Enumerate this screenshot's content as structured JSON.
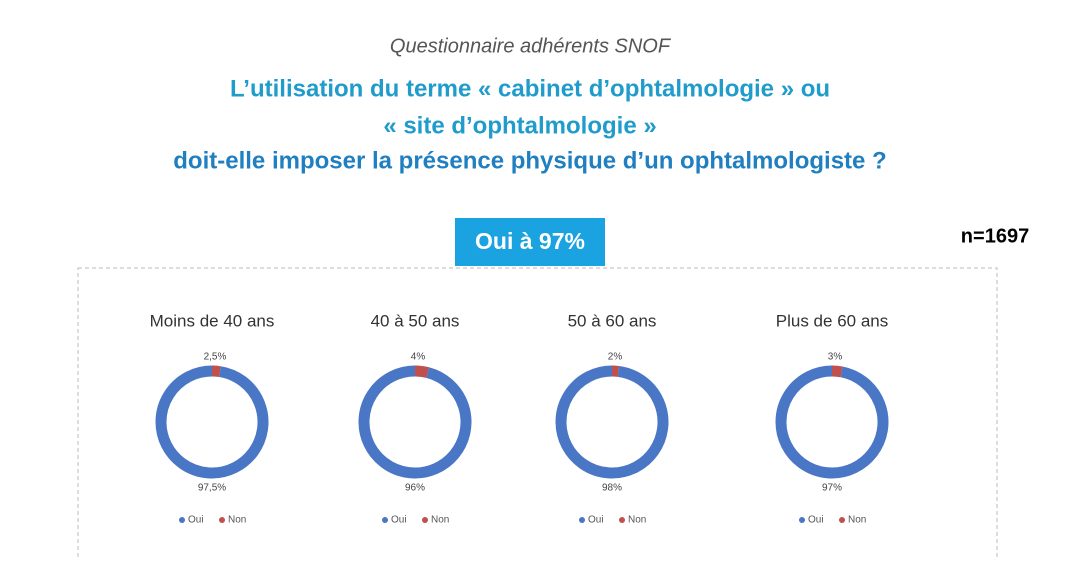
{
  "header": {
    "subtitle": "Questionnaire adhérents SNOF",
    "title": [
      "L’utilisation du terme « cabinet d’ophtalmologie » ou",
      "« site d’ophtalmologie »",
      "doit-elle imposer la présence physique d’un ophtalmologiste ?"
    ]
  },
  "badge": "Oui à 97%",
  "sample": "n=1697",
  "chart_data": [
    {
      "type": "donut",
      "title": "Moins de 40 ans",
      "categories": [
        "Oui",
        "Non"
      ],
      "values": [
        97.5,
        2.5
      ],
      "value_labels": [
        "97,5%",
        "2,5%"
      ],
      "colors": [
        "#4a76c6",
        "#c0504d"
      ]
    },
    {
      "type": "donut",
      "title": "40 à 50 ans",
      "categories": [
        "Oui",
        "Non"
      ],
      "values": [
        96,
        4
      ],
      "value_labels": [
        "96%",
        "4%"
      ],
      "colors": [
        "#4a76c6",
        "#c0504d"
      ]
    },
    {
      "type": "donut",
      "title": "50 à 60 ans",
      "categories": [
        "Oui",
        "Non"
      ],
      "values": [
        98,
        2
      ],
      "value_labels": [
        "98%",
        "2%"
      ],
      "colors": [
        "#4a76c6",
        "#c0504d"
      ]
    },
    {
      "type": "donut",
      "title": "Plus de 60 ans",
      "categories": [
        "Oui",
        "Non"
      ],
      "values": [
        97,
        3
      ],
      "value_labels": [
        "97%",
        "3%"
      ],
      "colors": [
        "#4a76c6",
        "#c0504d"
      ]
    }
  ]
}
